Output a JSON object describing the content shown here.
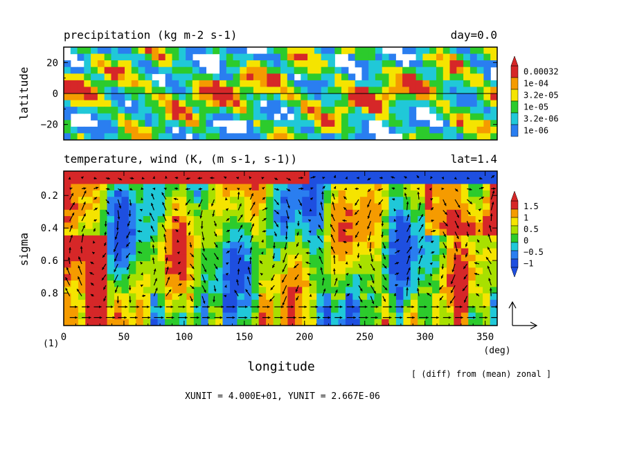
{
  "chart_data": [
    {
      "type": "heatmap",
      "title": "precipitation (kg m-2 s-1)",
      "title_right": "day=0.0",
      "ylabel": "latitude",
      "y_ticks": [
        20,
        0,
        -20
      ],
      "y_tick_labels": [
        "20",
        "0",
        "−20"
      ],
      "ylim": [
        -30,
        30
      ],
      "xlim": [
        0,
        360
      ],
      "zero_line": 0,
      "colorbar": {
        "labels": [
          "0.00032",
          "1e-04",
          "3.2e-05",
          "1e-05",
          "3.2e-06",
          "1e-06"
        ],
        "colors": [
          "#d62728",
          "#f59b00",
          "#f5e400",
          "#2ccb2c",
          "#20c8d8",
          "#2a7ef0"
        ],
        "extend": "max"
      }
    },
    {
      "type": "heatmap",
      "title": "temperature, wind (K, (m s-1, s-1))",
      "title_right": "lat=1.4",
      "xlabel": "longitude",
      "x_unit": "(deg)",
      "ylabel": "sigma",
      "x_ticks": [
        0,
        50,
        100,
        150,
        200,
        250,
        300,
        350
      ],
      "y_ticks": [
        0.2,
        0.4,
        0.6,
        0.8
      ],
      "xlim": [
        0,
        360
      ],
      "ylim": [
        0.05,
        1.0
      ],
      "colorbar": {
        "labels": [
          "1.5",
          "1",
          "0.5",
          "0",
          "−0.5",
          "−1"
        ],
        "colors": [
          "#d62728",
          "#f59b00",
          "#f5e400",
          "#a8e000",
          "#2ccb2c",
          "#20c8d8",
          "#2a7ef0",
          "#1e4fe0"
        ],
        "extend": "both"
      },
      "vector_reference": true
    }
  ],
  "figure_number": "(1)",
  "note": "[ (diff) from (mean) zonal ]",
  "units_line": "XUNIT = 4.000E+01, YUNIT = 2.667E-06"
}
